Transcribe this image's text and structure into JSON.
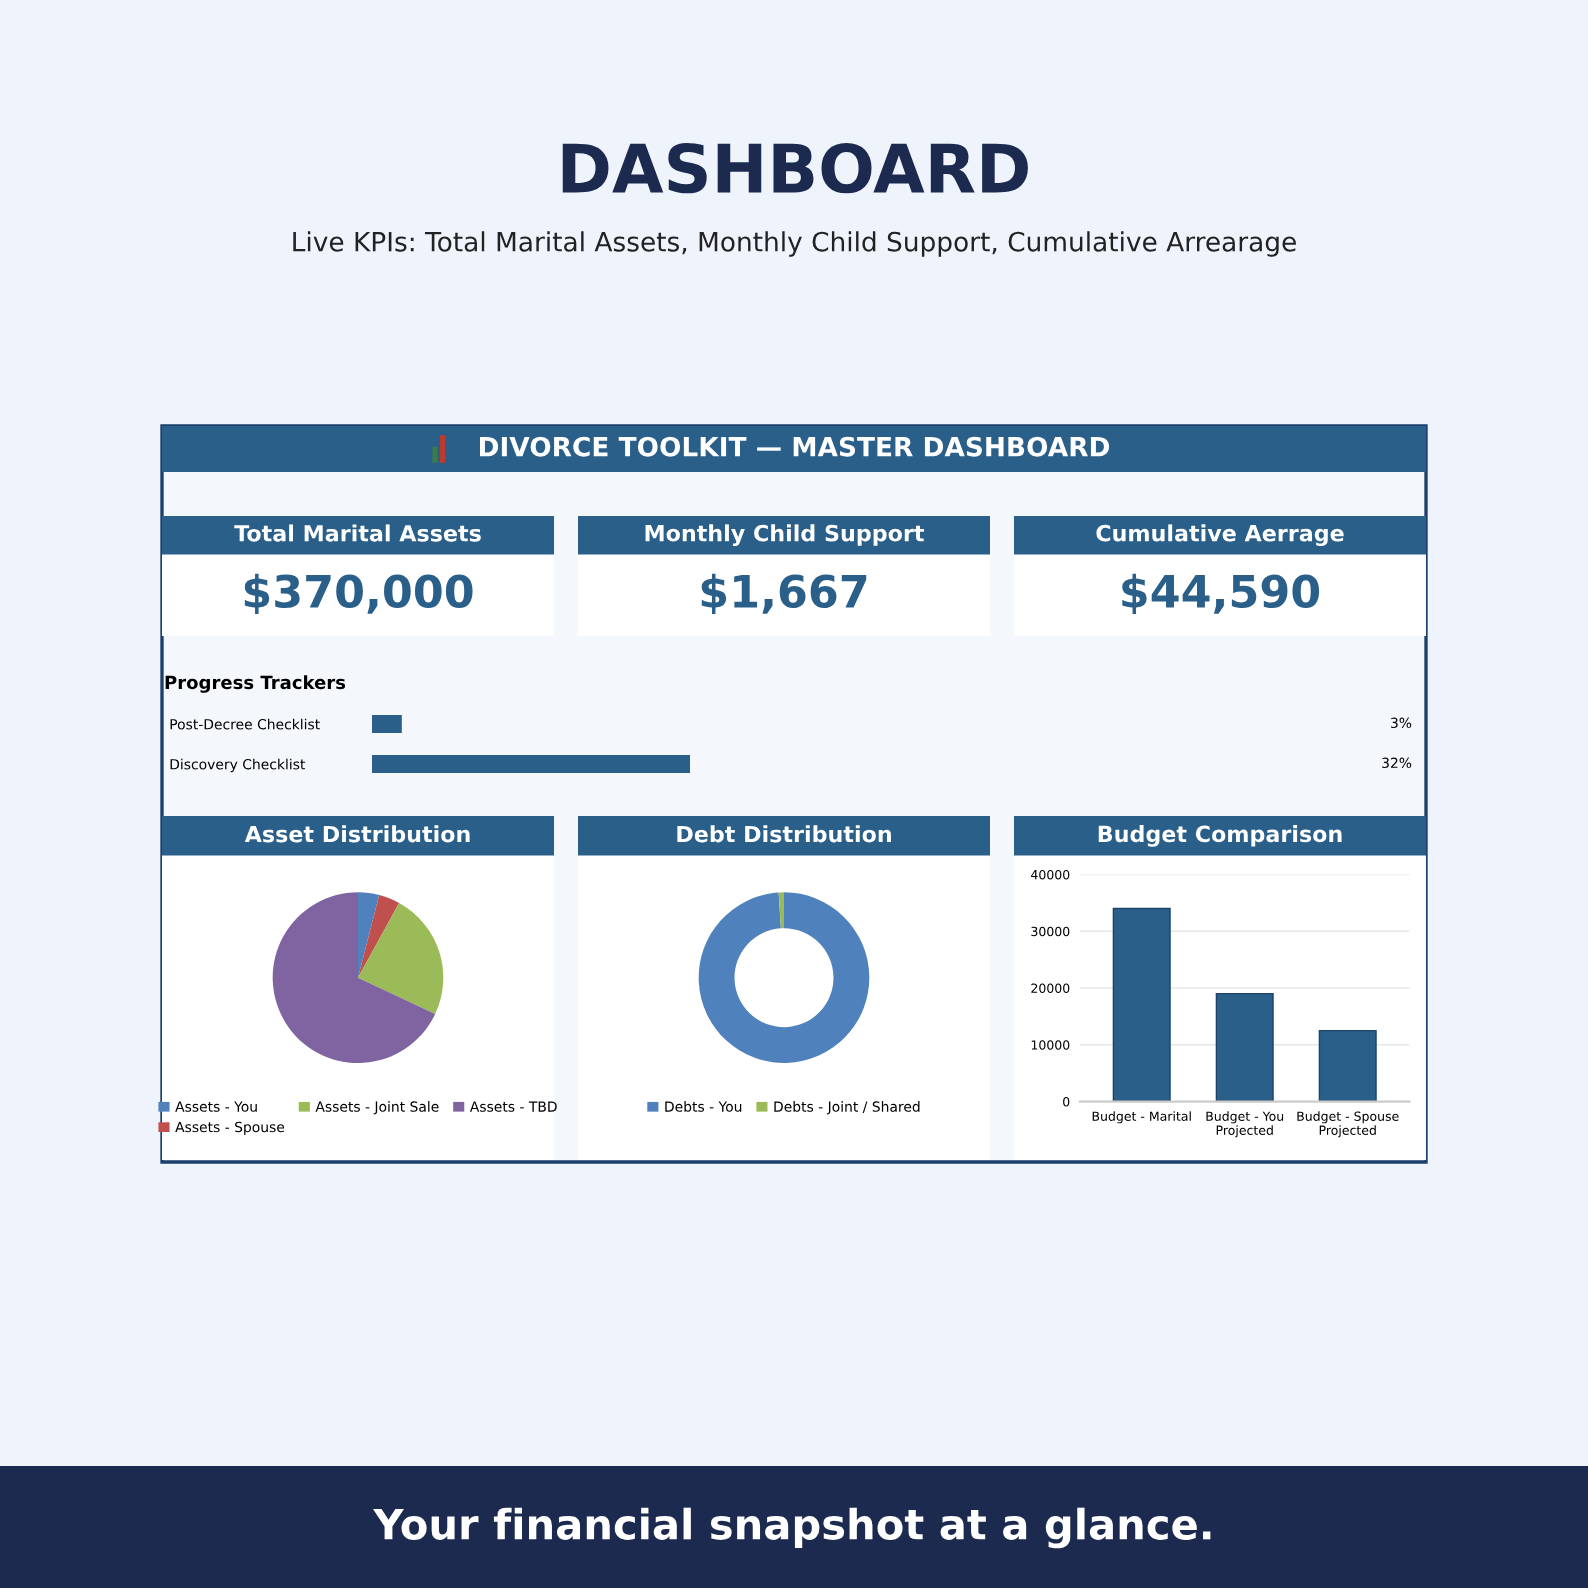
{
  "chart_data": [
    {
      "type": "other",
      "title": "DASHBOARD",
      "subtitle": "Live KPIs: Total Marital Assets, Monthly Child Support, Cumulative Arrearage",
      "annotations": [
        "Your financial snapshot at a glance."
      ]
    },
    {
      "type": "other",
      "title": "DIVORCE TOOLKIT — MASTER DASHBOARD"
    },
    {
      "type": "other",
      "title": "Total Marital Assets",
      "annotations": [
        "$370,000"
      ]
    },
    {
      "type": "other",
      "title": "Monthly Child Support",
      "annotations": [
        "$1,667"
      ]
    },
    {
      "type": "other",
      "title": "Cumulative Aerrage",
      "annotations": [
        "$44,590"
      ]
    },
    {
      "type": "bar",
      "orientation": "horizontal",
      "title": "Progress Trackers",
      "categories": [
        "Post-Decree Checklist",
        "Discovery Checklist"
      ],
      "values": [
        3,
        32
      ],
      "value_labels": [
        "3%",
        "32%"
      ],
      "color": "#2a5f8a",
      "tick_labels": "y"
    },
    {
      "type": "pie",
      "title": "Asset Distribution",
      "categories": [
        "Assets - You",
        "Assets - Spouse",
        "Assets - Joint Sale",
        "Assets - TBD"
      ],
      "values": [
        4,
        4,
        24,
        68
      ],
      "colors": [
        "#4f81bd",
        "#c0504d",
        "#9bbb59",
        "#8064a2"
      ],
      "legend": "bottom"
    },
    {
      "type": "donut",
      "title": "Debt Distribution",
      "categories": [
        "Debts - You",
        "Debts - Joint / Shared"
      ],
      "values": [
        99,
        1
      ],
      "colors": [
        "#4f81bd",
        "#9bbb59"
      ],
      "legend": "bottom"
    },
    {
      "type": "bar",
      "title": "Budget Comparison",
      "categories": [
        "Budget - Marital",
        "Budget - You\nProjected",
        "Budget - Spouse\nProjected"
      ],
      "values": [
        34000,
        19000,
        12500
      ],
      "color": "#2a5f8a",
      "ylim": [
        0,
        40000
      ],
      "yticks": [
        0,
        10000,
        20000,
        30000,
        40000
      ],
      "grid": "y"
    }
  ]
}
